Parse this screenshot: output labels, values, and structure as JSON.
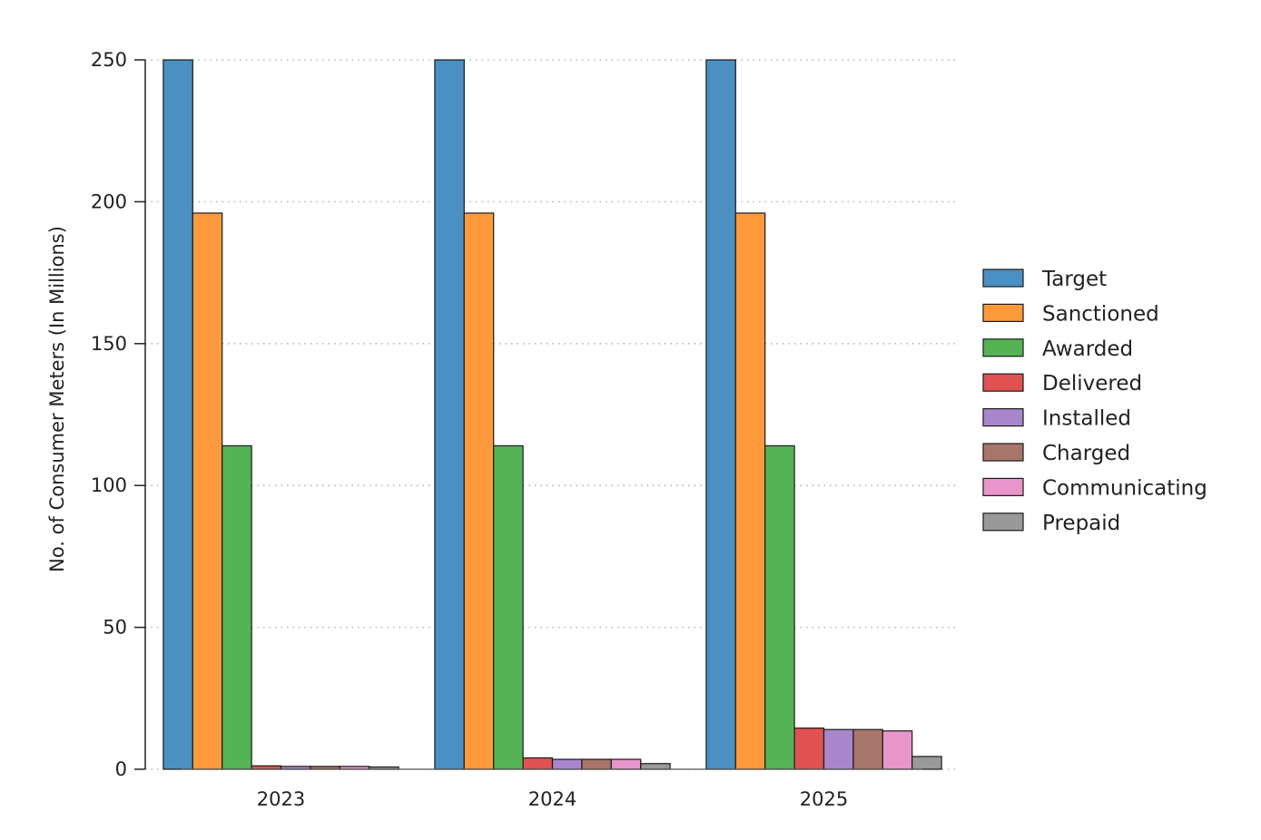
{
  "chart_data": {
    "type": "bar",
    "title": "",
    "xlabel": "",
    "ylabel": "No. of Consumer Meters (In Millions)",
    "ylim": [
      0,
      250
    ],
    "yticks": [
      0,
      50,
      100,
      150,
      200,
      250
    ],
    "grid": "horizontal-dotted",
    "legend_position": "right",
    "categories": [
      "2023",
      "2024",
      "2025"
    ],
    "series": [
      {
        "name": "Target",
        "color": "#4a90c2",
        "values": [
          250,
          250,
          250
        ]
      },
      {
        "name": "Sanctioned",
        "color": "#ff9a3c",
        "values": [
          196,
          196,
          196
        ]
      },
      {
        "name": "Awarded",
        "color": "#55b355",
        "values": [
          114,
          114,
          114
        ]
      },
      {
        "name": "Delivered",
        "color": "#e05252",
        "values": [
          1.2,
          4,
          14.5
        ]
      },
      {
        "name": "Installed",
        "color": "#a886cc",
        "values": [
          1.0,
          3.5,
          14
        ]
      },
      {
        "name": "Charged",
        "color": "#a8756b",
        "values": [
          1.0,
          3.5,
          14
        ]
      },
      {
        "name": "Communicating",
        "color": "#e895cc",
        "values": [
          1.0,
          3.5,
          13.5
        ]
      },
      {
        "name": "Prepaid",
        "color": "#999999",
        "values": [
          0.8,
          2,
          4.5
        ]
      }
    ]
  }
}
